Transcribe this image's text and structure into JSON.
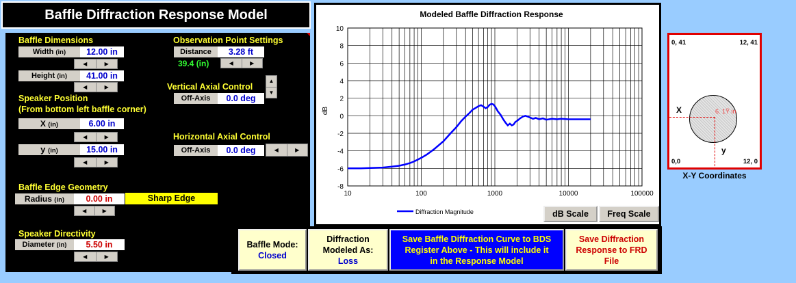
{
  "app": {
    "title": "Baffle Diffraction Response Model"
  },
  "baffle_dimensions": {
    "heading": "Baffle Dimensions",
    "width_label": "Width",
    "width_unit": "(in)",
    "width_value": "12.00 in",
    "height_label": "Height",
    "height_unit": "(in)",
    "height_value": "41.00 in"
  },
  "observation": {
    "heading": "Observation Point Settings",
    "distance_label": "Distance",
    "distance_value": "3.28 ft",
    "distance_inches": "39.4 (in)"
  },
  "vertical_axial": {
    "heading": "Vertical Axial Control",
    "label": "Off-Axis",
    "value": "0.0 deg"
  },
  "speaker_position": {
    "heading": "Speaker Position",
    "subheading": "(From bottom left baffle corner)",
    "x_label": "X",
    "x_unit": "(in)",
    "x_value": "6.00 in",
    "y_label": "y",
    "y_unit": "(in)",
    "y_value": "15.00 in"
  },
  "horizontal_axial": {
    "heading": "Horizontal Axial Control",
    "label": "Off-Axis",
    "value": "0.0 deg"
  },
  "edge_geometry": {
    "heading": "Baffle Edge Geometry",
    "radius_label": "Radius",
    "radius_unit": "(in)",
    "radius_value": "0.00 in",
    "edge_type": "Sharp Edge"
  },
  "directivity": {
    "heading": "Speaker Directivity",
    "diameter_label": "Diameter",
    "diameter_unit": "(in)",
    "diameter_value": "5.50 in"
  },
  "chart_buttons": {
    "db_scale": "dB Scale",
    "freq_scale": "Freq Scale"
  },
  "bottom_buttons": {
    "mode_title": "Baffle Mode:",
    "mode_value": "Closed",
    "diff_line1": "Diffraction",
    "diff_line2": "Modeled As:",
    "diff_value": "Loss",
    "save_bds_line1": "Save Baffle Diffraction Curve to BDS",
    "save_bds_line2": "Register Above - This will include it",
    "save_bds_line3": "in the Response Model",
    "save_frd_line1": "Save Diffraction",
    "save_frd_line2": "Response to FRD",
    "save_frd_line3": "File"
  },
  "xy_diagram": {
    "caption": "X-Y Coordinates",
    "top_left": "0, 41",
    "top_right": "12, 41",
    "bottom_left": "0,0",
    "bottom_right": "12, 0",
    "x_marker": "X",
    "y_marker": "y",
    "diameter_label": "6. 1Ÿ in",
    "colors": {
      "border": "#e00000",
      "circle": "#d8d8d8",
      "guide": "#e00000"
    }
  },
  "colors": {
    "heading": "#ffff33",
    "value_blue": "#0000cc",
    "value_red": "#cc0000",
    "curve": "#0000ff",
    "edge_badge": "#ffff00",
    "page_bg": "#99ccff"
  },
  "chart_data": {
    "type": "line",
    "title": "Modeled Baffle Diffraction Response",
    "xlabel": "",
    "ylabel": "dB",
    "xscale": "log",
    "xlim": [
      10,
      100000
    ],
    "ylim": [
      -8,
      10
    ],
    "xticks": [
      10,
      100,
      1000,
      10000,
      100000
    ],
    "xtick_labels": [
      "10",
      "100",
      "1000",
      "10000",
      "100000"
    ],
    "yticks": [
      -8,
      -6,
      -4,
      -2,
      0,
      2,
      4,
      6,
      8,
      10
    ],
    "grid": true,
    "legend_position": "bottom-left",
    "series": [
      {
        "name": "Diffraction Magnitude",
        "color": "#0000ff",
        "x": [
          10,
          15,
          20,
          30,
          40,
          50,
          60,
          70,
          80,
          100,
          120,
          150,
          200,
          250,
          300,
          350,
          400,
          450,
          500,
          550,
          600,
          650,
          700,
          750,
          800,
          850,
          900,
          950,
          1000,
          1050,
          1100,
          1200,
          1300,
          1400,
          1500,
          1600,
          1700,
          1800,
          1900,
          2000,
          2200,
          2400,
          2600,
          2800,
          3000,
          3300,
          3600,
          4000,
          4500,
          5000,
          6000,
          7000,
          8000,
          10000,
          12000,
          15000,
          20000
        ],
        "y": [
          -6.0,
          -6.0,
          -5.95,
          -5.9,
          -5.8,
          -5.7,
          -5.55,
          -5.4,
          -5.2,
          -4.8,
          -4.4,
          -3.8,
          -2.9,
          -2.0,
          -1.3,
          -0.6,
          -0.1,
          0.3,
          0.7,
          0.9,
          1.1,
          1.2,
          1.05,
          0.85,
          1.0,
          1.25,
          1.35,
          1.3,
          1.1,
          0.8,
          0.5,
          0.1,
          -0.4,
          -0.8,
          -1.1,
          -0.9,
          -1.1,
          -1.0,
          -0.7,
          -0.6,
          -0.3,
          -0.1,
          0.0,
          -0.1,
          -0.2,
          -0.35,
          -0.25,
          -0.4,
          -0.3,
          -0.45,
          -0.35,
          -0.4,
          -0.35,
          -0.4,
          -0.4,
          -0.4,
          -0.4
        ]
      }
    ]
  }
}
